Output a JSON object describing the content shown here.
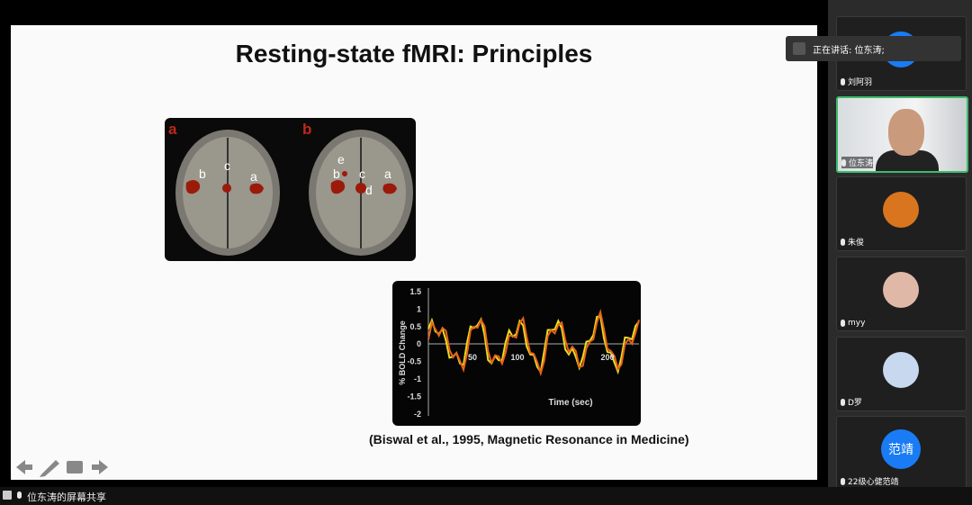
{
  "slide": {
    "title": "Resting-state fMRI: Principles",
    "figure_a": {
      "panel_labels": [
        "a",
        "b"
      ],
      "region_labels_a": [
        "b",
        "c",
        "a"
      ],
      "region_labels_b": [
        "e",
        "b",
        "c",
        "d",
        "a"
      ]
    },
    "figure_bold": {
      "y_label": "% BOLD Change",
      "x_label": "Time (sec)",
      "y_ticks": [
        "1.5",
        "1",
        "0.5",
        "0",
        "-0.5",
        "-1",
        "-1.5",
        "-2"
      ],
      "x_ticks": [
        "50",
        "100",
        "200"
      ]
    },
    "citation": "(Biswal et al., 1995, Magnetic Resonance in Medicine)"
  },
  "speaking": "正在讲话: 位东涛;",
  "participants": [
    {
      "name": "刘阿羽"
    },
    {
      "name": "位东涛"
    },
    {
      "name": "朱俊"
    },
    {
      "name": "myy"
    },
    {
      "name": "D罗"
    },
    {
      "name": "22级心健范靖",
      "avatar": "范靖"
    }
  ],
  "screen_share": "位东涛的屏幕共享"
}
